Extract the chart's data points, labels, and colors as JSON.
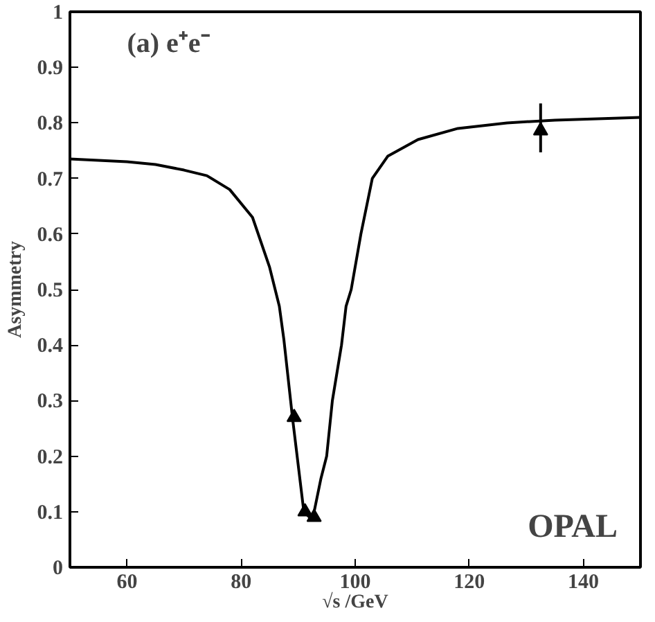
{
  "chart_data": {
    "type": "line",
    "xlabel": "√s /GeV",
    "ylabel": "Asymmetry",
    "annotations": [
      "(a) e⁺e⁻",
      "OPAL"
    ],
    "xlim": [
      50,
      150
    ],
    "xticks": [
      60,
      80,
      100,
      120,
      140
    ],
    "ylim": [
      0,
      1
    ],
    "yticks": [
      0,
      0.1,
      0.2,
      0.3,
      0.4,
      0.5,
      0.6,
      0.7,
      0.8,
      0.9,
      1
    ],
    "grid": false,
    "series": [
      {
        "color": "#000000",
        "marker": "none",
        "x": [
          50,
          60,
          65,
          70,
          74,
          78,
          82,
          85,
          86.7,
          87.5,
          89,
          91,
          92.5,
          94,
          95,
          96,
          97.6,
          98.4,
          99.3,
          101,
          103,
          105.7,
          111,
          118,
          126.6,
          135,
          150
        ],
        "values": [
          0.735,
          0.73,
          0.725,
          0.715,
          0.705,
          0.68,
          0.63,
          0.54,
          0.47,
          0.41,
          0.27,
          0.1,
          0.085,
          0.16,
          0.2,
          0.3,
          0.4,
          0.47,
          0.5,
          0.6,
          0.7,
          0.74,
          0.77,
          0.79,
          0.8,
          0.805,
          0.81
        ]
      },
      {
        "type": "scatter",
        "color": "#000000",
        "marker": "triangle",
        "x": [
          89.3,
          91.2,
          92.8,
          132.5
        ],
        "values": [
          0.27,
          0.1,
          0.09,
          0.786
        ],
        "errors": [
          null,
          null,
          null,
          [
            0.747,
            0.835
          ]
        ]
      }
    ]
  }
}
